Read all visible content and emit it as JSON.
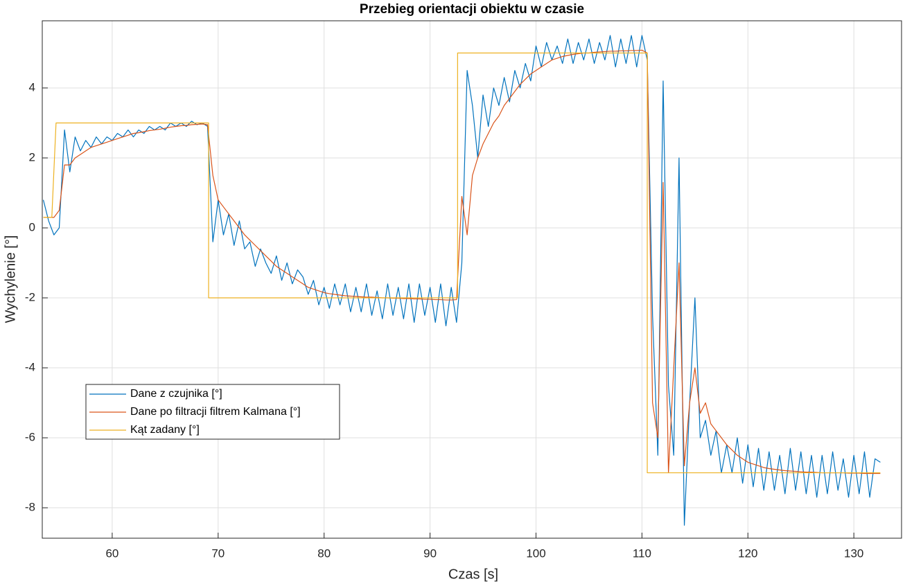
{
  "chart_data": {
    "type": "line",
    "title": "Przebieg orientacji obiektu w czasie",
    "xlabel": "Czas [s]",
    "ylabel": "Wychylenie [°]",
    "xlim": [
      53.4,
      134.5
    ],
    "ylim": [
      -8.87,
      5.92
    ],
    "xticks": [
      60,
      70,
      80,
      90,
      100,
      110,
      120,
      130
    ],
    "yticks": [
      -8,
      -6,
      -4,
      -2,
      0,
      2,
      4
    ],
    "grid": true,
    "legend": "lower left",
    "x": [
      53.5,
      54,
      54.5,
      55,
      55.5,
      56,
      56.5,
      57,
      57.5,
      58,
      58.5,
      59,
      59.5,
      60,
      60.5,
      61,
      61.5,
      62,
      62.5,
      63,
      63.5,
      64,
      64.5,
      65,
      65.5,
      66,
      66.5,
      67,
      67.5,
      68,
      68.5,
      69,
      69.5,
      70,
      70.5,
      71,
      71.5,
      72,
      72.5,
      73,
      73.5,
      74,
      74.5,
      75,
      75.5,
      76,
      76.5,
      77,
      77.5,
      78,
      78.5,
      79,
      79.5,
      80,
      80.5,
      81,
      81.5,
      82,
      82.5,
      83,
      83.5,
      84,
      84.5,
      85,
      85.5,
      86,
      86.5,
      87,
      87.5,
      88,
      88.5,
      89,
      89.5,
      90,
      90.5,
      91,
      91.5,
      92,
      92.5,
      93,
      93.5,
      94,
      94.5,
      95,
      95.5,
      96,
      96.5,
      97,
      97.5,
      98,
      98.5,
      99,
      99.5,
      100,
      100.5,
      101,
      101.5,
      102,
      102.5,
      103,
      103.5,
      104,
      104.5,
      105,
      105.5,
      106,
      106.5,
      107,
      107.5,
      108,
      108.5,
      109,
      109.5,
      110,
      110.5,
      111,
      111.5,
      112,
      112.5,
      113,
      113.5,
      114,
      114.5,
      115,
      115.5,
      116,
      116.5,
      117,
      117.5,
      118,
      118.5,
      119,
      119.5,
      120,
      120.5,
      121,
      121.5,
      122,
      122.5,
      123,
      123.5,
      124,
      124.5,
      125,
      125.5,
      126,
      126.5,
      127,
      127.5,
      128,
      128.5,
      129,
      129.5,
      130,
      130.5,
      131,
      131.5,
      132,
      132.5
    ],
    "series": [
      {
        "name": "Dane z czujnika [°]",
        "color": "#0072BD",
        "values": [
          0.8,
          0.2,
          -0.2,
          0.0,
          2.8,
          1.6,
          2.6,
          2.2,
          2.5,
          2.3,
          2.6,
          2.4,
          2.6,
          2.5,
          2.7,
          2.6,
          2.8,
          2.6,
          2.8,
          2.7,
          2.9,
          2.8,
          2.9,
          2.8,
          3.0,
          2.9,
          3.0,
          2.9,
          3.05,
          2.95,
          3.0,
          2.9,
          -0.4,
          0.8,
          -0.2,
          0.4,
          -0.5,
          0.2,
          -0.6,
          -0.4,
          -1.1,
          -0.6,
          -1.0,
          -1.3,
          -0.8,
          -1.5,
          -1.0,
          -1.6,
          -1.2,
          -1.4,
          -1.9,
          -1.5,
          -2.2,
          -1.7,
          -2.3,
          -1.6,
          -2.2,
          -1.6,
          -2.4,
          -1.7,
          -2.4,
          -1.6,
          -2.5,
          -1.8,
          -2.6,
          -1.6,
          -2.5,
          -1.7,
          -2.6,
          -1.6,
          -2.7,
          -1.6,
          -2.5,
          -1.7,
          -2.7,
          -1.6,
          -2.8,
          -1.7,
          -2.7,
          -1.0,
          4.5,
          3.5,
          2.0,
          3.8,
          2.9,
          4.0,
          3.5,
          4.3,
          3.6,
          4.5,
          4.0,
          4.7,
          4.2,
          5.2,
          4.6,
          5.3,
          4.8,
          5.2,
          4.7,
          5.4,
          4.7,
          5.3,
          4.8,
          5.4,
          4.7,
          5.3,
          4.8,
          5.5,
          4.6,
          5.4,
          4.7,
          5.5,
          4.6,
          5.5,
          4.8,
          -2.5,
          -6.5,
          4.2,
          -4.5,
          -6.5,
          2.0,
          -8.5,
          -5.0,
          -2.0,
          -6.0,
          -5.5,
          -6.5,
          -5.8,
          -7.0,
          -6.2,
          -7.0,
          -6.0,
          -7.3,
          -6.2,
          -7.4,
          -6.3,
          -7.5,
          -6.4,
          -7.5,
          -6.5,
          -7.6,
          -6.3,
          -7.5,
          -6.4,
          -7.6,
          -6.5,
          -7.7,
          -6.5,
          -7.6,
          -6.4,
          -7.5,
          -6.6,
          -7.7,
          -6.5,
          -7.6,
          -6.4,
          -7.7,
          -6.6,
          -6.7
        ]
      },
      {
        "name": "Dane po filtracji filtrem Kalmana [°]",
        "color": "#D95319",
        "values": [
          0.3,
          0.3,
          0.3,
          0.5,
          1.8,
          1.8,
          2.0,
          2.1,
          2.2,
          2.3,
          2.35,
          2.4,
          2.45,
          2.5,
          2.55,
          2.6,
          2.65,
          2.7,
          2.72,
          2.75,
          2.78,
          2.8,
          2.82,
          2.85,
          2.88,
          2.9,
          2.92,
          2.93,
          2.95,
          2.96,
          2.97,
          2.95,
          1.5,
          0.8,
          0.6,
          0.4,
          0.2,
          0.0,
          -0.2,
          -0.35,
          -0.5,
          -0.65,
          -0.8,
          -0.95,
          -1.1,
          -1.2,
          -1.3,
          -1.4,
          -1.5,
          -1.6,
          -1.7,
          -1.75,
          -1.8,
          -1.85,
          -1.88,
          -1.9,
          -1.92,
          -1.94,
          -1.95,
          -1.96,
          -1.97,
          -1.98,
          -1.98,
          -1.99,
          -2.0,
          -2.0,
          -2.01,
          -2.01,
          -2.02,
          -2.02,
          -2.03,
          -2.03,
          -2.04,
          -2.04,
          -2.05,
          -2.05,
          -2.06,
          -2.06,
          -2.05,
          0.9,
          -0.2,
          1.5,
          2.0,
          2.4,
          2.7,
          3.0,
          3.2,
          3.5,
          3.7,
          3.9,
          4.1,
          4.25,
          4.4,
          4.5,
          4.6,
          4.7,
          4.8,
          4.85,
          4.9,
          4.93,
          4.96,
          4.98,
          5.0,
          5.0,
          5.02,
          5.03,
          5.04,
          5.05,
          5.05,
          5.06,
          5.06,
          5.07,
          5.07,
          5.08,
          5.0,
          -5.0,
          -6.0,
          1.3,
          -7.0,
          -4.0,
          -1.0,
          -6.8,
          -5.0,
          -4.0,
          -5.3,
          -5.0,
          -5.6,
          -5.8,
          -6.0,
          -6.2,
          -6.35,
          -6.5,
          -6.6,
          -6.7,
          -6.75,
          -6.8,
          -6.85,
          -6.88,
          -6.9,
          -6.92,
          -6.94,
          -6.95,
          -6.96,
          -6.97,
          -6.98,
          -6.98,
          -6.99,
          -7.0,
          -7.0,
          -7.0,
          -7.0,
          -7.0,
          -7.01,
          -7.01,
          -7.01,
          -7.02,
          -7.02,
          -7.02,
          -7.02
        ]
      },
      {
        "name": "Kąt zadany [°]",
        "color": "#EDB120",
        "x": [
          53.5,
          54.3,
          54.7,
          69.1,
          69.1,
          92.6,
          92.6,
          110.5,
          110.5,
          132.5
        ],
        "values": [
          0.3,
          0.3,
          3,
          3,
          -2,
          -2,
          5,
          5,
          -7,
          -7
        ]
      }
    ]
  }
}
